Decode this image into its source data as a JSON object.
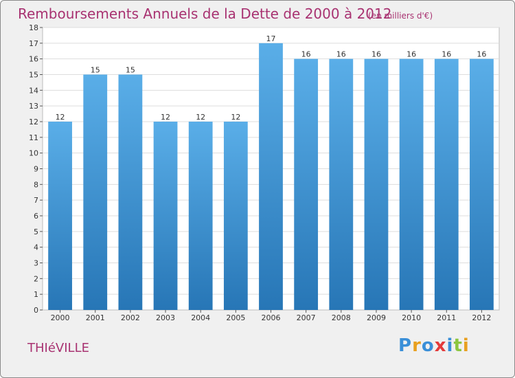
{
  "header": {
    "title": "Remboursements Annuels de la Dette de 2000 à 2012",
    "unit": "(en milliers d'€)"
  },
  "footer": {
    "commune": "THIéVILLE",
    "logo": [
      "P",
      "r",
      "o",
      "x",
      "i",
      "t",
      "i"
    ]
  },
  "colors": {
    "title": "#a83271",
    "bar_top": "#5aaee8",
    "bar_bottom": "#2776b6",
    "plot_bg": "#ffffff",
    "grid": "#dddddd",
    "logo": [
      "#3a8fd8",
      "#e8a020",
      "#3a8fd8",
      "#e33b3b",
      "#3a8fd8",
      "#8cc63f",
      "#e8a020"
    ]
  },
  "chart_data": {
    "type": "bar",
    "title": "Remboursements Annuels de la Dette de 2000 à 2012",
    "subtitle": "(en milliers d'€)",
    "xlabel": "",
    "ylabel": "",
    "categories": [
      "2000",
      "2001",
      "2002",
      "2003",
      "2004",
      "2005",
      "2006",
      "2007",
      "2008",
      "2009",
      "2010",
      "2011",
      "2012"
    ],
    "values": [
      12,
      15,
      15,
      12,
      12,
      12,
      17,
      16,
      16,
      16,
      16,
      16,
      16
    ],
    "ylim": [
      0,
      18
    ],
    "yticks": [
      0,
      1,
      2,
      3,
      4,
      5,
      6,
      7,
      8,
      9,
      10,
      11,
      12,
      13,
      14,
      15,
      16,
      17,
      18
    ],
    "grid": true,
    "legend": "none"
  }
}
